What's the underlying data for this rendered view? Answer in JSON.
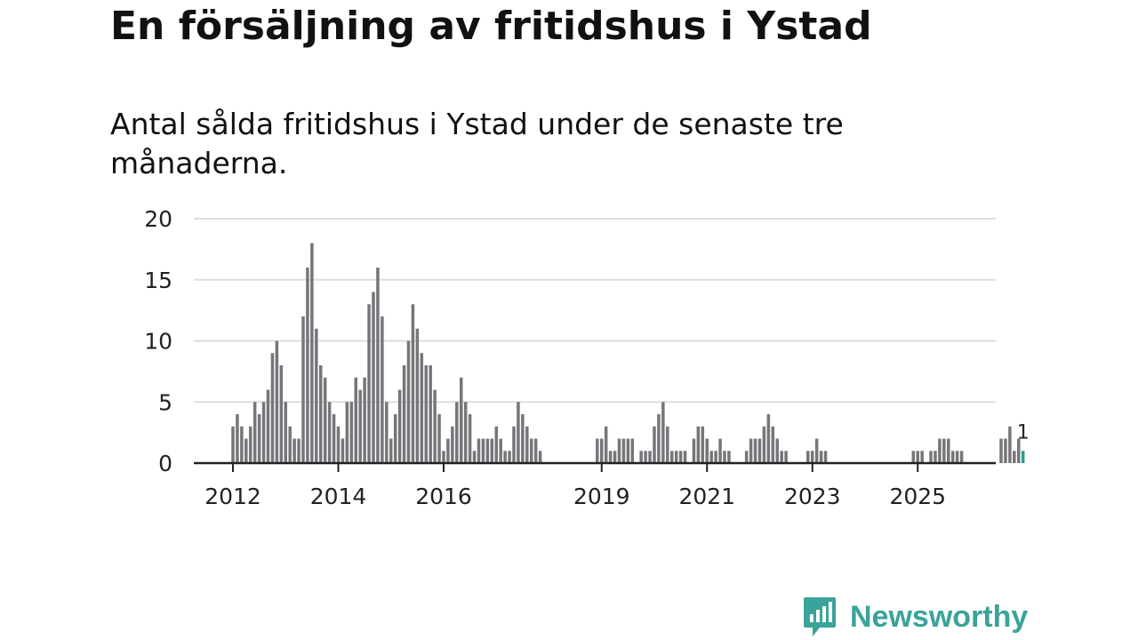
{
  "title": "En försäljning av fritidshus i Ystad",
  "subtitle": "Antal sålda fritidshus i Ystad under de senaste tre månaderna.",
  "brand": {
    "name": "Newsworthy",
    "color": "#3aa39a"
  },
  "colors": {
    "bar": "#76757a",
    "highlight": "#2a9d8f",
    "grid": "#dddddd",
    "axis": "#222222"
  },
  "chart_data": {
    "type": "bar",
    "title": "En försäljning av fritidshus i Ystad",
    "subtitle": "Antal sålda fritidshus i Ystad under de senaste tre månaderna.",
    "xlabel": "",
    "ylabel": "",
    "ylim": [
      0,
      20
    ],
    "yticks": [
      0,
      5,
      10,
      15,
      20
    ],
    "xticks": [
      {
        "label": "2012",
        "x": 2012.0
      },
      {
        "label": "2014",
        "x": 2014.0
      },
      {
        "label": "2016",
        "x": 2016.0
      },
      {
        "label": "2019",
        "x": 2019.0
      },
      {
        "label": "2021",
        "x": 2021.0
      },
      {
        "label": "2023",
        "x": 2023.0
      },
      {
        "label": "2025",
        "x": 2025.0
      }
    ],
    "grid": true,
    "x_start": 2012.0,
    "x_step": 0.08333,
    "values": [
      3,
      4,
      3,
      2,
      3,
      5,
      4,
      5,
      6,
      9,
      10,
      8,
      5,
      3,
      2,
      2,
      12,
      16,
      18,
      11,
      8,
      7,
      5,
      4,
      3,
      2,
      5,
      5,
      7,
      6,
      7,
      13,
      14,
      16,
      12,
      5,
      2,
      4,
      6,
      8,
      10,
      13,
      11,
      9,
      8,
      8,
      6,
      4,
      1,
      2,
      3,
      5,
      7,
      5,
      4,
      1,
      2,
      2,
      2,
      2,
      3,
      2,
      1,
      1,
      3,
      5,
      4,
      3,
      2,
      2,
      1,
      0,
      0,
      0,
      0,
      0,
      0,
      0,
      0,
      0,
      0,
      0,
      0,
      2,
      2,
      3,
      1,
      1,
      2,
      2,
      2,
      2,
      0,
      1,
      1,
      1,
      3,
      4,
      5,
      3,
      1,
      1,
      1,
      1,
      0,
      2,
      3,
      3,
      2,
      1,
      1,
      2,
      1,
      1,
      0,
      0,
      0,
      1,
      2,
      2,
      2,
      3,
      4,
      3,
      2,
      1,
      1,
      0,
      0,
      0,
      0,
      1,
      1,
      2,
      1,
      1,
      0,
      0,
      0,
      0,
      0,
      0,
      0,
      0,
      0,
      0,
      0,
      0,
      0,
      0,
      0,
      0,
      0,
      0,
      0,
      1,
      1,
      1,
      0,
      1,
      1,
      2,
      2,
      2,
      1,
      1,
      1,
      0,
      0,
      0,
      0,
      0,
      0,
      0,
      0,
      2,
      2,
      3,
      1,
      2,
      1
    ],
    "last_value_label": "1"
  }
}
